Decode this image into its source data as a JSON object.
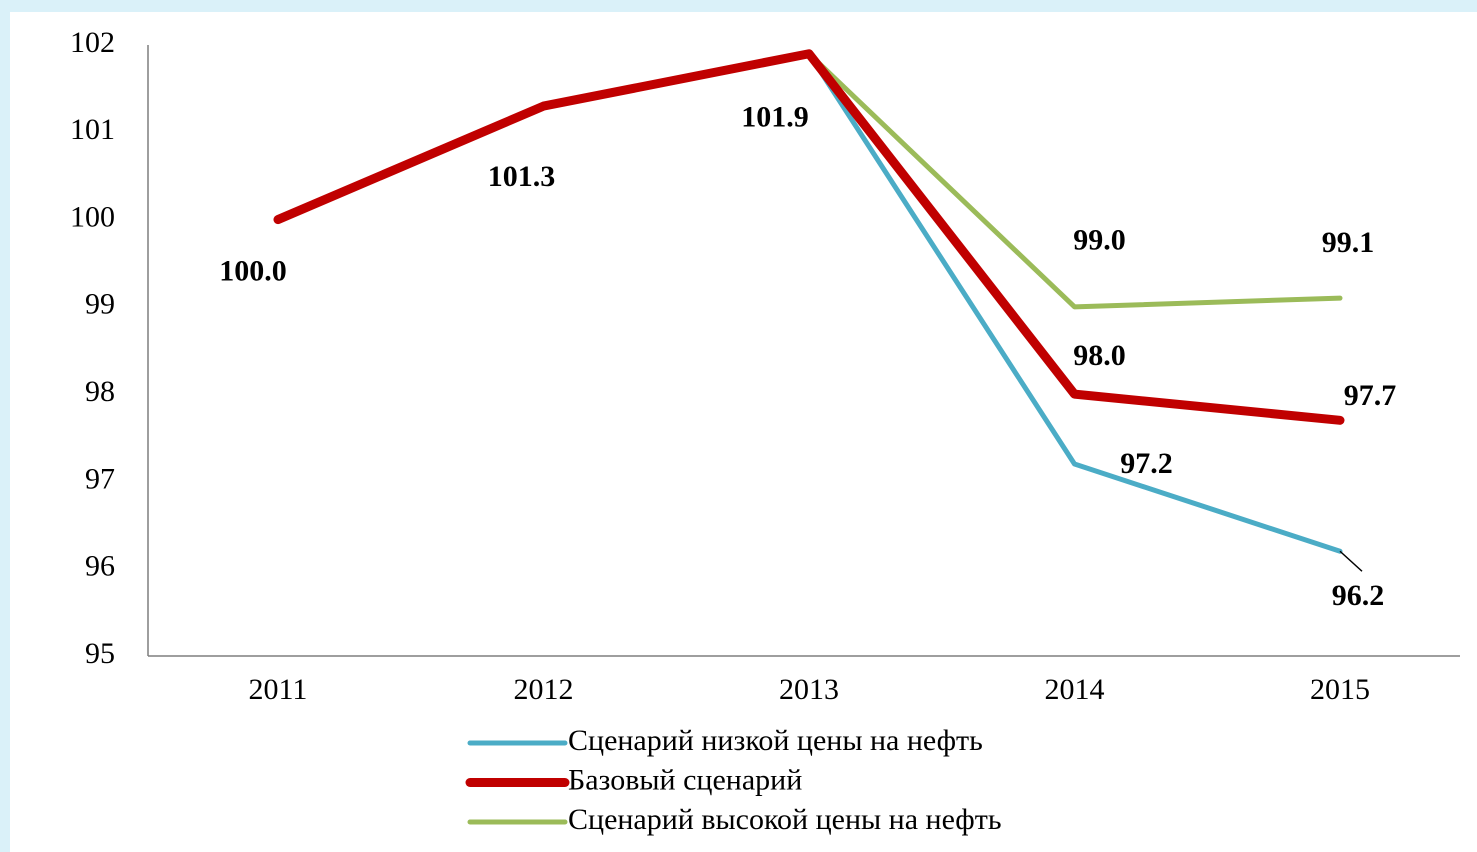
{
  "chart_data": {
    "type": "line",
    "categories": [
      "2011",
      "2012",
      "2013",
      "2014",
      "2015"
    ],
    "series": [
      {
        "name": "Сценарий низкой цены на нефть",
        "color": "#4bacc6",
        "values": [
          null,
          null,
          101.9,
          97.2,
          96.2
        ],
        "value_labels": [
          null,
          null,
          null,
          "97.2",
          "96.2"
        ]
      },
      {
        "name": "Базовый сценарий",
        "color": "#c00000",
        "values": [
          100,
          101.3,
          101.9,
          98,
          97.7
        ],
        "value_labels": [
          "100.0",
          "101.3",
          "101.9",
          "98.0",
          "97.7"
        ]
      },
      {
        "name": "Сценарий высокой цены на нефть",
        "color": "#9bbb59",
        "values": [
          null,
          null,
          101.9,
          99,
          99.1
        ],
        "value_labels": [
          null,
          null,
          null,
          "99.0",
          "99.1"
        ]
      }
    ],
    "ylim": [
      95,
      102
    ],
    "yticks": [
      95,
      96,
      97,
      98,
      99,
      100,
      101,
      102
    ],
    "grid": false,
    "legend": "bottom"
  }
}
